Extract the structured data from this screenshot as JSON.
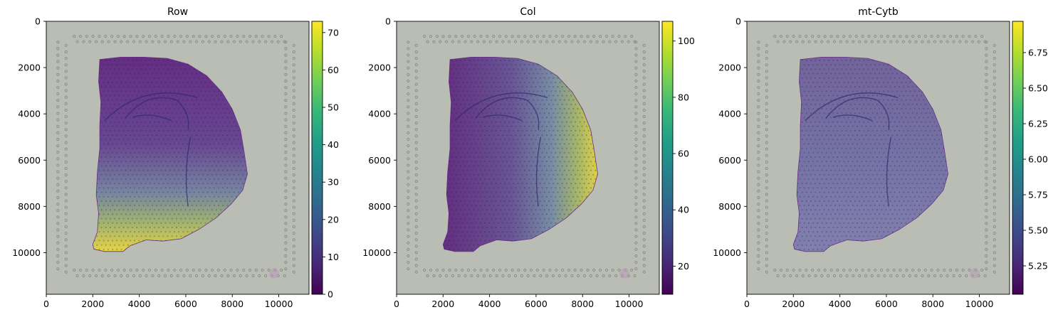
{
  "chart_data": [
    {
      "type": "heatmap",
      "title": "Row",
      "xticks": [
        0,
        2000,
        4000,
        6000,
        8000,
        10000
      ],
      "yticks": [
        0,
        2000,
        4000,
        6000,
        8000,
        10000
      ],
      "xlim": [
        0,
        11300
      ],
      "ylim": [
        11800,
        0
      ],
      "colorbar": {
        "cmap": "viridis",
        "range": [
          0,
          73
        ],
        "ticks": [
          0,
          10,
          20,
          30,
          40,
          50,
          60,
          70
        ],
        "tick_labels": [
          "0",
          "10",
          "20",
          "30",
          "40",
          "50",
          "60",
          "70"
        ]
      },
      "gradient": {
        "direction": "vertical",
        "low_at": "top",
        "high_at": "bottom",
        "low": 0,
        "high": 73
      }
    },
    {
      "type": "heatmap",
      "title": "Col",
      "xticks": [
        0,
        2000,
        4000,
        6000,
        8000,
        10000
      ],
      "yticks": [
        0,
        2000,
        4000,
        6000,
        8000,
        10000
      ],
      "xlim": [
        0,
        11300
      ],
      "ylim": [
        11800,
        0
      ],
      "colorbar": {
        "cmap": "viridis",
        "range": [
          10,
          107
        ],
        "ticks": [
          20,
          40,
          60,
          80,
          100
        ],
        "tick_labels": [
          "20",
          "40",
          "60",
          "80",
          "100"
        ]
      },
      "gradient": {
        "direction": "horizontal",
        "low_at": "left",
        "high_at": "right",
        "low": 10,
        "high": 107
      }
    },
    {
      "type": "heatmap",
      "title": "mt-Cytb",
      "xticks": [
        0,
        2000,
        4000,
        6000,
        8000,
        10000
      ],
      "yticks": [
        0,
        2000,
        4000,
        6000,
        8000,
        10000
      ],
      "xlim": [
        0,
        11300
      ],
      "ylim": [
        11800,
        0
      ],
      "colorbar": {
        "cmap": "viridis",
        "range": [
          5.05,
          6.97
        ],
        "ticks": [
          5.25,
          5.5,
          5.75,
          6.0,
          6.25,
          6.5,
          6.75
        ],
        "tick_labels": [
          "5.25",
          "5.50",
          "5.75",
          "6.00",
          "6.25",
          "6.50",
          "6.75"
        ]
      },
      "gradient": {
        "direction": "none",
        "low": 5.05,
        "high": 6.97
      }
    }
  ],
  "colors": {
    "tissue_background": "#b9bdb3",
    "fiducial_dot": "#8d9089",
    "viridis": [
      "#440154",
      "#482878",
      "#3e4989",
      "#31688e",
      "#26828e",
      "#1f9e89",
      "#35b779",
      "#6ece58",
      "#b5de2b",
      "#fde725"
    ]
  }
}
